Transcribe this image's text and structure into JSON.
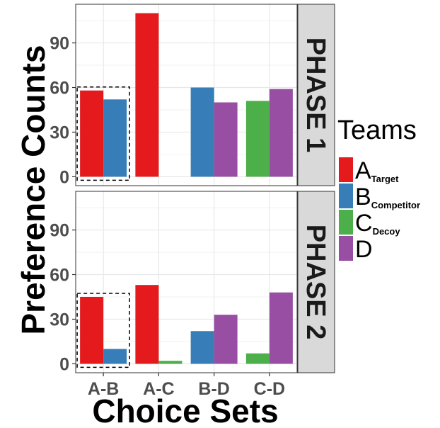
{
  "chart_data": {
    "type": "bar",
    "xlabel": "Choice Sets",
    "ylabel": "Preference Counts",
    "categories": [
      "A-B",
      "A-C",
      "B-D",
      "C-D"
    ],
    "yticks": [
      0,
      30,
      60,
      90
    ],
    "ylim": [
      -6,
      116
    ],
    "grid": true,
    "legend": {
      "title": "Teams",
      "position": "right",
      "items": [
        {
          "key": "A",
          "main": "A",
          "sub": "Target",
          "color": "#e41a1c"
        },
        {
          "key": "B",
          "main": "B",
          "sub": "Competitor",
          "color": "#377eb8"
        },
        {
          "key": "C",
          "main": "C",
          "sub": "Decoy",
          "color": "#4daf4a"
        },
        {
          "key": "D",
          "main": "D",
          "sub": "",
          "color": "#984ea3"
        }
      ]
    },
    "facets": [
      {
        "label": "PHASE 1",
        "highlight_category": "A-B",
        "groups": [
          {
            "category": "A-B",
            "bars": [
              {
                "team": "A",
                "value": 58
              },
              {
                "team": "B",
                "value": 52
              }
            ]
          },
          {
            "category": "A-C",
            "bars": [
              {
                "team": "A",
                "value": 110
              },
              {
                "team": "C",
                "value": 0
              }
            ]
          },
          {
            "category": "B-D",
            "bars": [
              {
                "team": "B",
                "value": 60
              },
              {
                "team": "D",
                "value": 50
              }
            ]
          },
          {
            "category": "C-D",
            "bars": [
              {
                "team": "C",
                "value": 51
              },
              {
                "team": "D",
                "value": 59
              }
            ]
          }
        ]
      },
      {
        "label": "PHASE 2",
        "highlight_category": "A-B",
        "groups": [
          {
            "category": "A-B",
            "bars": [
              {
                "team": "A",
                "value": 45
              },
              {
                "team": "B",
                "value": 10
              }
            ]
          },
          {
            "category": "A-C",
            "bars": [
              {
                "team": "A",
                "value": 53
              },
              {
                "team": "C",
                "value": 2
              }
            ]
          },
          {
            "category": "B-D",
            "bars": [
              {
                "team": "B",
                "value": 22
              },
              {
                "team": "D",
                "value": 33
              }
            ]
          },
          {
            "category": "C-D",
            "bars": [
              {
                "team": "C",
                "value": 7
              },
              {
                "team": "D",
                "value": 48
              }
            ]
          }
        ]
      }
    ]
  }
}
